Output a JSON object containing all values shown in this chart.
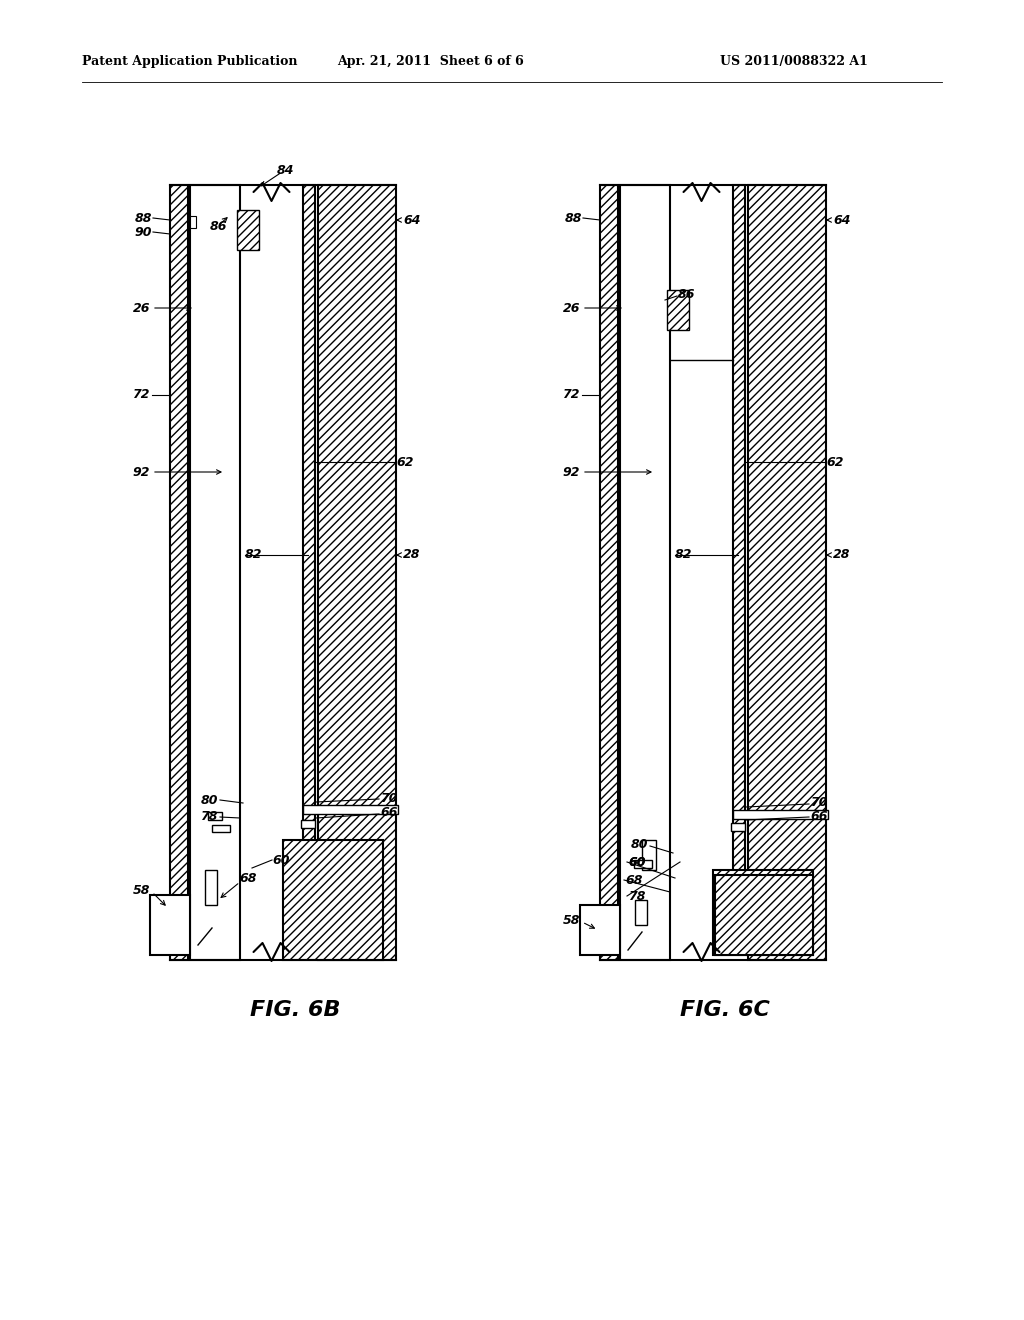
{
  "title_left": "Patent Application Publication",
  "title_center": "Apr. 21, 2011  Sheet 6 of 6",
  "title_right": "US 2011/0088322 A1",
  "fig_label_6b": "FIG. 6B",
  "fig_label_6c": "FIG. 6C",
  "bg_color": "#ffffff"
}
